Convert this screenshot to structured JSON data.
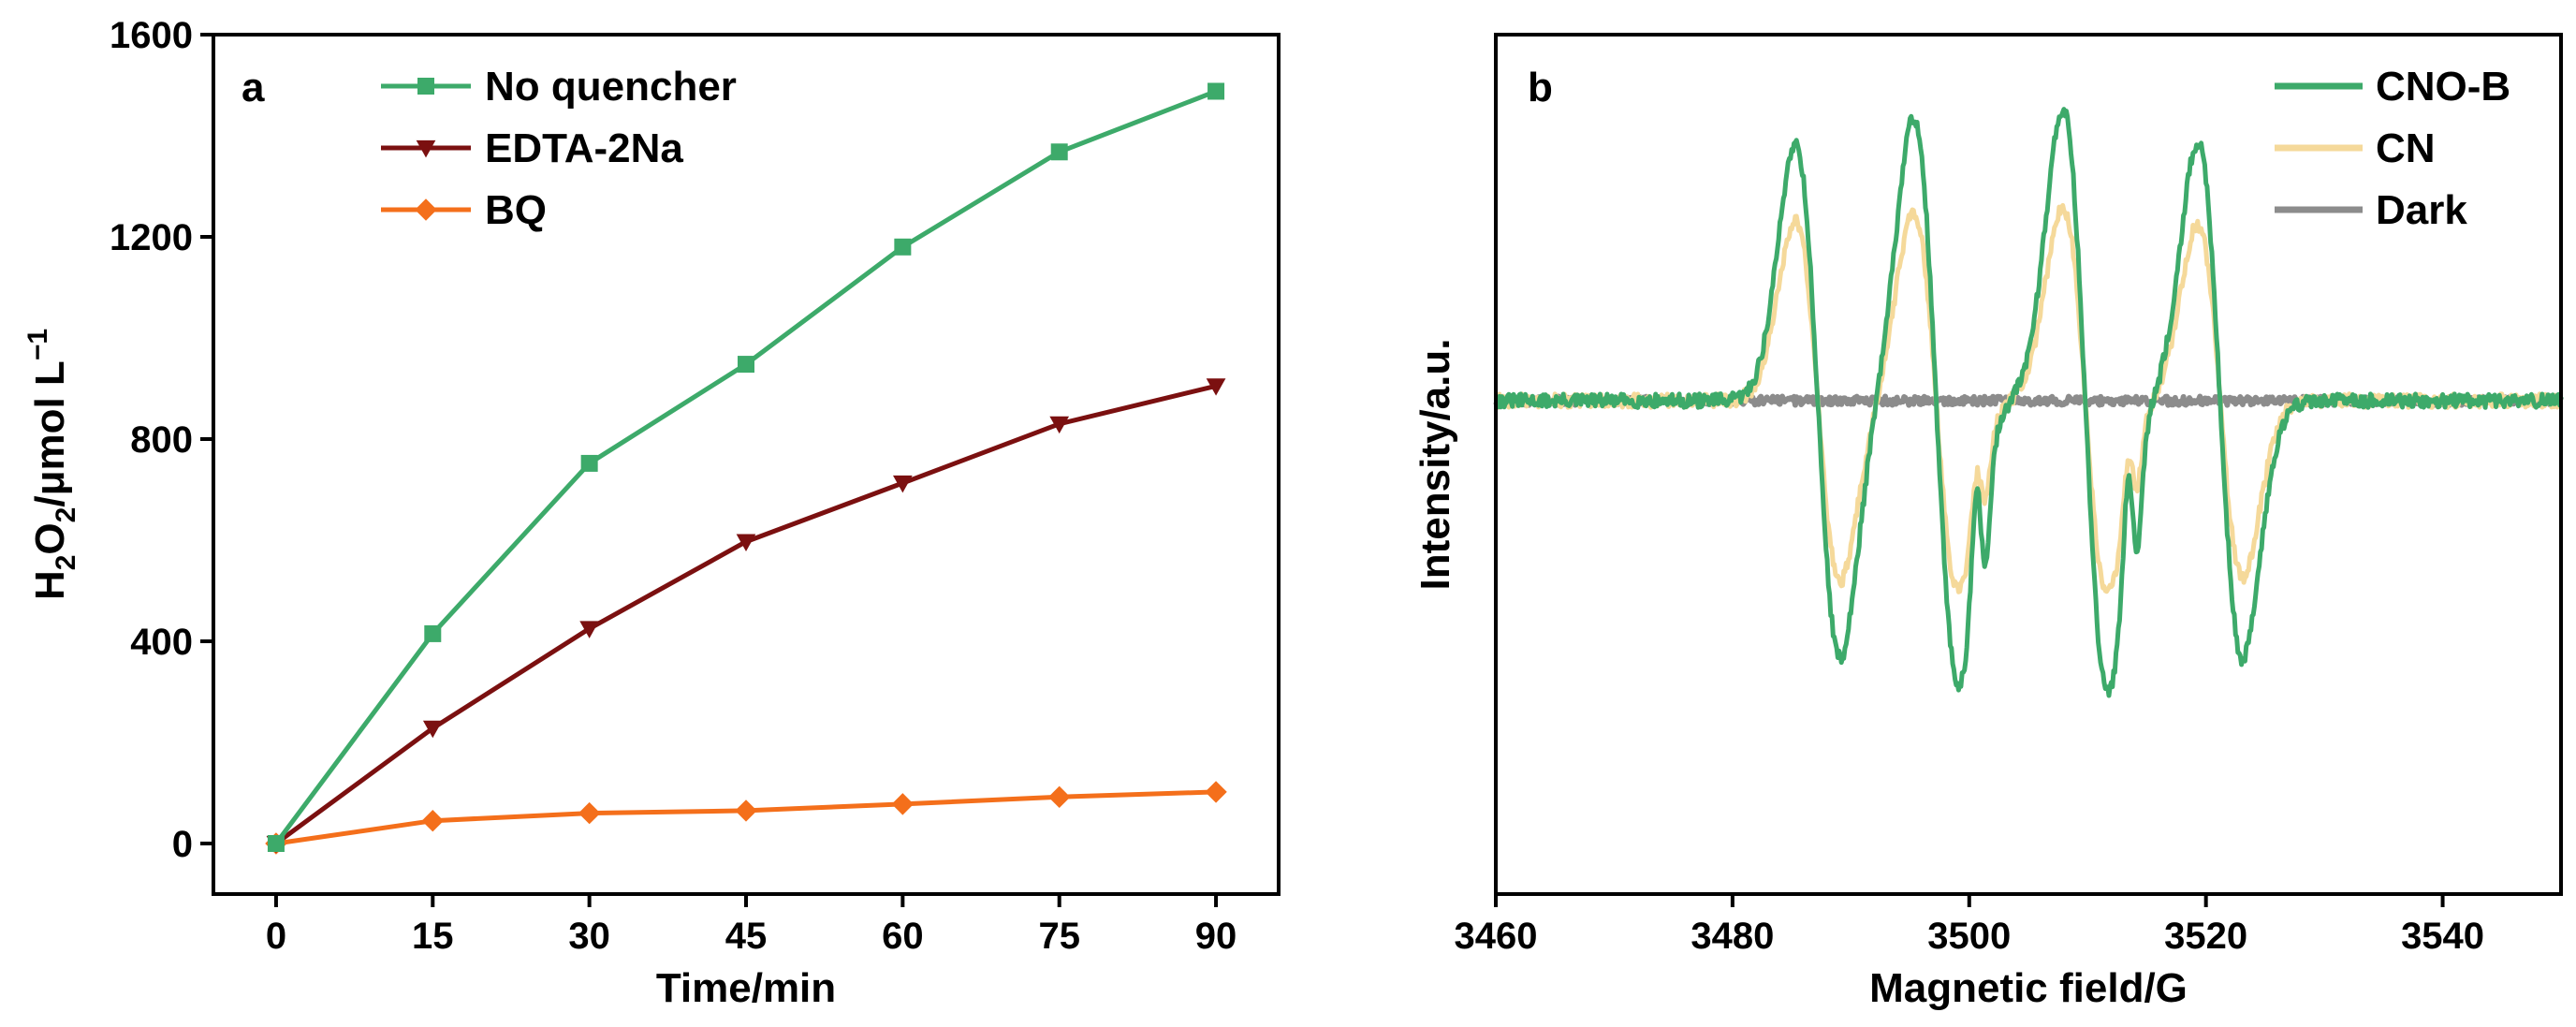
{
  "chart_data": [
    {
      "panel": "a",
      "type": "line",
      "xlabel": "Time/min",
      "ylabel": {
        "parts": [
          "H",
          "2",
          "O",
          "2",
          "/μmol L",
          "−1"
        ]
      },
      "xlim": [
        -6,
        96
      ],
      "ylim": [
        -100,
        1600
      ],
      "xticks": [
        0,
        15,
        30,
        45,
        60,
        75,
        90
      ],
      "yticks": [
        0,
        400,
        800,
        1200,
        1600
      ],
      "x": [
        0,
        15,
        30,
        45,
        60,
        75,
        90
      ],
      "legend_position": "top-left",
      "series": [
        {
          "name": "No quencher",
          "color": "#3daa6a",
          "marker": "square",
          "values": [
            0,
            415,
            752,
            948,
            1180,
            1368,
            1488
          ]
        },
        {
          "name": "EDTA-2Na",
          "color": "#7b1010",
          "marker": "triangle-down",
          "values": [
            0,
            228,
            425,
            597,
            713,
            830,
            905
          ]
        },
        {
          "name": "BQ",
          "color": "#f46f1b",
          "marker": "diamond",
          "values": [
            0,
            45,
            60,
            65,
            78,
            92,
            102
          ]
        }
      ]
    },
    {
      "panel": "b",
      "type": "line",
      "xlabel": "Magnetic field/G",
      "ylabel": "Intensity/a.u.",
      "xlim": [
        3460,
        3550
      ],
      "ylim": [
        0,
        1
      ],
      "xticks": [
        3460,
        3480,
        3500,
        3520,
        3540
      ],
      "baseline": 0.574,
      "legend_position": "top-right",
      "series": [
        {
          "name": "CNO-B",
          "color": "#3daa6a",
          "peaks": [
            {
              "x": 3487.2,
              "amp": 0.3,
              "w": 1.9
            },
            {
              "x": 3497.2,
              "amp": 0.33,
              "w": 1.9
            },
            {
              "x": 3509.8,
              "amp": 0.34,
              "w": 1.9
            },
            {
              "x": 3521.2,
              "amp": 0.3,
              "w": 1.9
            },
            {
              "x": 3501.0,
              "amp": 0.09,
              "w": 0.45
            },
            {
              "x": 3513.8,
              "amp": 0.085,
              "w": 0.45
            }
          ]
        },
        {
          "name": "CN",
          "color": "#f5d99a",
          "peaks": [
            {
              "x": 3487.2,
              "amp": 0.21,
              "w": 1.9
            },
            {
              "x": 3497.2,
              "amp": 0.22,
              "w": 1.9
            },
            {
              "x": 3509.8,
              "amp": 0.225,
              "w": 1.9
            },
            {
              "x": 3521.2,
              "amp": 0.205,
              "w": 1.9
            },
            {
              "x": 3501.0,
              "amp": 0.045,
              "w": 0.45
            },
            {
              "x": 3513.8,
              "amp": 0.045,
              "w": 0.45
            }
          ]
        },
        {
          "name": "Dark",
          "color": "#8c8c8c",
          "peaks": []
        }
      ]
    }
  ]
}
